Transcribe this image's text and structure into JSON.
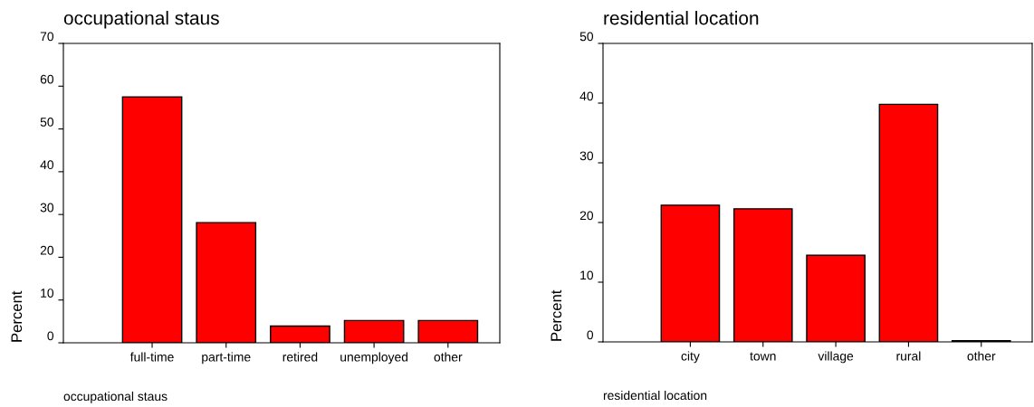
{
  "chart_data": [
    {
      "type": "bar",
      "title": "occupational staus",
      "xlabel": "occupational staus",
      "ylabel": "Percent",
      "categories": [
        "full-time",
        "part-time",
        "retired",
        "unemployed",
        "other"
      ],
      "values": [
        57.5,
        28.1,
        3.9,
        5.2,
        5.2
      ],
      "color": "#ff0000",
      "ylim": [
        0,
        70
      ],
      "yticks": [
        0,
        10,
        20,
        30,
        40,
        50,
        60,
        70
      ],
      "grid": false,
      "legend": false
    },
    {
      "type": "bar",
      "title": "residential location",
      "xlabel": "residential location",
      "ylabel": "Percent",
      "categories": [
        "city",
        "town",
        "village",
        "rural",
        "other"
      ],
      "values": [
        22.9,
        22.3,
        14.5,
        39.8,
        0.2
      ],
      "color": "#ff0000",
      "ylim": [
        0,
        50
      ],
      "yticks": [
        0,
        10,
        20,
        30,
        40,
        50
      ],
      "grid": false,
      "legend": false
    }
  ]
}
